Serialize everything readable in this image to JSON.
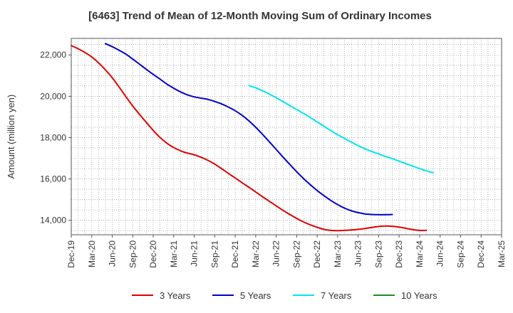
{
  "chart_data": {
    "type": "line",
    "title": "[6463]  Trend of Mean of 12-Month Moving Sum of Ordinary Incomes",
    "xlabel": "",
    "ylabel": "Amount (million yen)",
    "ylim": [
      13300,
      22800
    ],
    "y_ticks": [
      14000,
      16000,
      18000,
      20000,
      22000
    ],
    "y_tick_labels": [
      "14,000",
      "16,000",
      "18,000",
      "20,000",
      "22,000"
    ],
    "x_tick_labels": [
      "Dec-19",
      "Mar-20",
      "Jun-20",
      "Sep-20",
      "Dec-20",
      "Mar-21",
      "Jun-21",
      "Sep-21",
      "Dec-21",
      "Mar-22",
      "Jun-22",
      "Sep-22",
      "Dec-22",
      "Mar-23",
      "Jun-23",
      "Sep-23",
      "Dec-23",
      "Mar-24",
      "Jun-24",
      "Sep-24",
      "Dec-24",
      "Mar-25"
    ],
    "grid": true,
    "legend_position": "bottom",
    "series": [
      {
        "name": "3 Years",
        "color": "#e00000",
        "values": [
          22450,
          22300,
          22120,
          21900,
          21620,
          21280,
          20900,
          20450,
          19980,
          19530,
          19120,
          18730,
          18350,
          18010,
          17730,
          17520,
          17360,
          17250,
          17170,
          17050,
          16900,
          16720,
          16500,
          16270,
          16050,
          15820,
          15600,
          15370,
          15140,
          14920,
          14700,
          14480,
          14280,
          14090,
          13920,
          13780,
          13660,
          13560,
          13510,
          13500,
          13510,
          13530,
          13560,
          13600,
          13650,
          13700,
          13720,
          13710,
          13670,
          13610,
          13550,
          13510,
          13510
        ]
      },
      {
        "name": "5 Years",
        "color": "#0000cc",
        "values": [
          null,
          null,
          null,
          null,
          null,
          22550,
          22400,
          22230,
          22040,
          21800,
          21550,
          21300,
          21060,
          20830,
          20590,
          20390,
          20210,
          20070,
          19970,
          19910,
          19850,
          19750,
          19630,
          19480,
          19300,
          19080,
          18810,
          18500,
          18160,
          17800,
          17430,
          17060,
          16700,
          16350,
          16020,
          15720,
          15440,
          15190,
          14960,
          14760,
          14590,
          14460,
          14370,
          14310,
          14280,
          14270,
          14270,
          14280
        ]
      },
      {
        "name": "7 Years",
        "color": "#00e5ee",
        "values": [
          null,
          null,
          null,
          null,
          null,
          null,
          null,
          null,
          null,
          null,
          null,
          null,
          null,
          null,
          null,
          null,
          null,
          null,
          null,
          null,
          null,
          null,
          null,
          null,
          null,
          null,
          20520,
          20410,
          20270,
          20110,
          19930,
          19740,
          19550,
          19360,
          19170,
          18970,
          18760,
          18550,
          18340,
          18140,
          17960,
          17780,
          17610,
          17460,
          17330,
          17210,
          17090,
          16980,
          16860,
          16740,
          16620,
          16500,
          16390,
          16300
        ]
      },
      {
        "name": "10 Years",
        "color": "#228b22",
        "values": []
      }
    ]
  }
}
